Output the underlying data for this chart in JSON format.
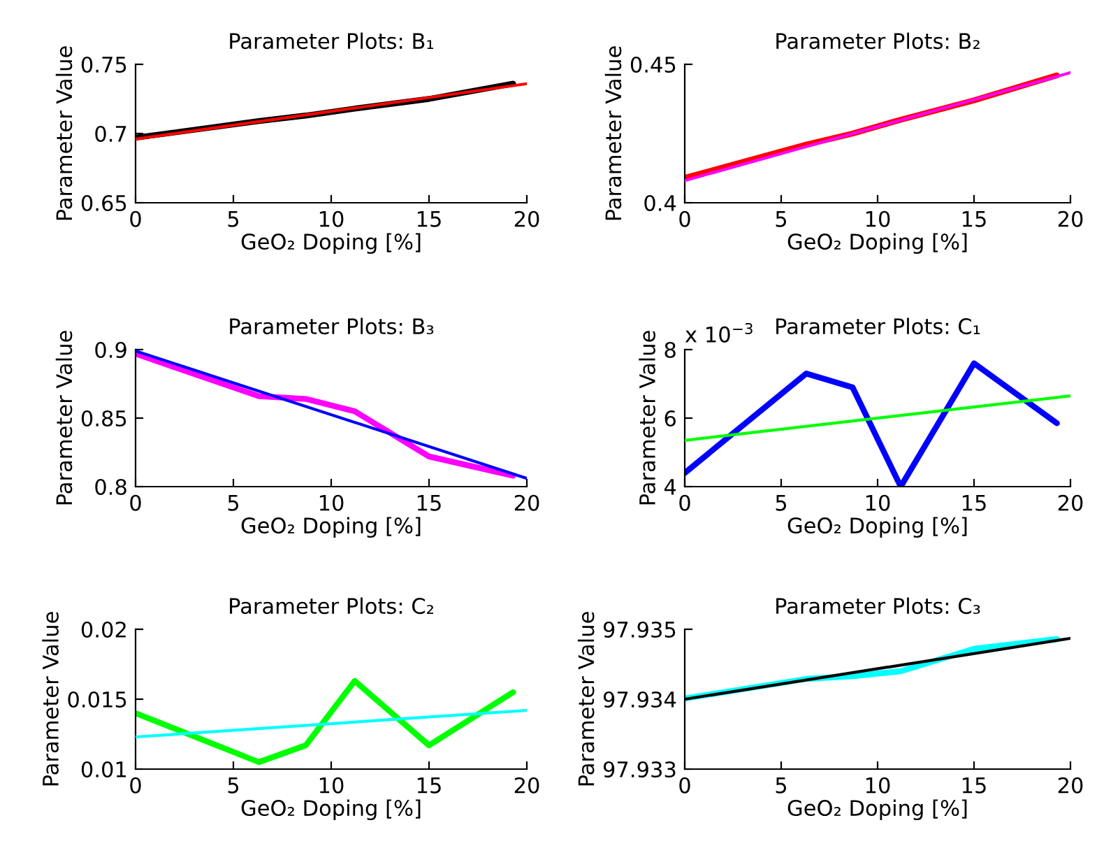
{
  "chart_data": [
    {
      "type": "line",
      "title": "Parameter Plots: B₁",
      "xlabel": "GeO₂ Doping [%]",
      "ylabel": "Parameter Value",
      "xlim": [
        0,
        20
      ],
      "xticks": [
        0,
        5,
        10,
        15,
        20
      ],
      "ylim": [
        0.65,
        0.75
      ],
      "yticks": [
        0.65,
        0.7,
        0.75
      ],
      "grid": false,
      "series": [
        {
          "color": "#000000",
          "x": [
            0,
            6.3,
            8.7,
            11.2,
            15,
            19.3
          ],
          "values": [
            0.697,
            0.709,
            0.713,
            0.718,
            0.725,
            0.736
          ]
        },
        {
          "color": "#ff0000",
          "x": [
            0,
            20
          ],
          "values": [
            0.696,
            0.736
          ]
        }
      ]
    },
    {
      "type": "line",
      "title": "Parameter Plots: B₂",
      "xlabel": "GeO₂ Doping [%]",
      "ylabel": "Parameter Value",
      "xlim": [
        0,
        20
      ],
      "xticks": [
        0,
        5,
        10,
        15,
        20
      ],
      "ylim": [
        0.4,
        0.45
      ],
      "yticks": [
        0.4,
        0.45
      ],
      "grid": false,
      "series": [
        {
          "color": "#ff0000",
          "x": [
            0,
            6.3,
            8.7,
            11.2,
            15,
            19.3
          ],
          "values": [
            0.409,
            0.421,
            0.425,
            0.43,
            0.437,
            0.446
          ]
        },
        {
          "color": "#ff00ff",
          "x": [
            0,
            20
          ],
          "values": [
            0.408,
            0.447
          ]
        }
      ]
    },
    {
      "type": "line",
      "title": "Parameter Plots: B₃",
      "xlabel": "GeO₂ Doping [%]",
      "ylabel": "Parameter Value",
      "xlim": [
        0,
        20
      ],
      "xticks": [
        0,
        5,
        10,
        15,
        20
      ],
      "ylim": [
        0.8,
        0.9
      ],
      "yticks": [
        0.8,
        0.85,
        0.9
      ],
      "grid": false,
      "series": [
        {
          "color": "#ff00ff",
          "x": [
            0,
            6.3,
            8.7,
            11.2,
            15,
            19.3
          ],
          "values": [
            0.897,
            0.866,
            0.864,
            0.855,
            0.822,
            0.808
          ]
        },
        {
          "color": "#0000ff",
          "x": [
            0,
            20
          ],
          "values": [
            0.899,
            0.806
          ]
        }
      ]
    },
    {
      "type": "line",
      "title": "Parameter Plots: C₁",
      "xlabel": "GeO₂ Doping [%]",
      "ylabel": "Parameter Value",
      "annotations": [
        "x 10$^{−3}$"
      ],
      "xlim": [
        0,
        20
      ],
      "xticks": [
        0,
        5,
        10,
        15,
        20
      ],
      "ylim": [
        4,
        8
      ],
      "yticks": [
        4,
        6,
        8
      ],
      "grid": false,
      "series": [
        {
          "color": "#0000ff",
          "x": [
            0,
            6.3,
            8.7,
            11.2,
            15,
            19.3
          ],
          "values": [
            4.4,
            7.3,
            6.9,
            4.0,
            7.6,
            5.85
          ]
        },
        {
          "color": "#00ff00",
          "x": [
            0,
            20
          ],
          "values": [
            5.35,
            6.65
          ]
        }
      ]
    },
    {
      "type": "line",
      "title": "Parameter Plots: C₂",
      "xlabel": "GeO₂ Doping [%]",
      "ylabel": "Parameter Value",
      "xlim": [
        0,
        20
      ],
      "xticks": [
        0,
        5,
        10,
        15,
        20
      ],
      "ylim": [
        0.01,
        0.02
      ],
      "yticks": [
        0.01,
        0.015,
        0.02
      ],
      "grid": false,
      "series": [
        {
          "color": "#00ff00",
          "x": [
            0,
            6.3,
            8.7,
            11.2,
            15,
            19.3
          ],
          "values": [
            0.014,
            0.0105,
            0.0117,
            0.0163,
            0.0117,
            0.0155
          ]
        },
        {
          "color": "#00ffff",
          "x": [
            0,
            20
          ],
          "values": [
            0.0123,
            0.0142
          ]
        }
      ]
    },
    {
      "type": "line",
      "title": "Parameter Plots: C₃",
      "xlabel": "GeO₂ Doping [%]",
      "ylabel": "Parameter Value",
      "xlim": [
        0,
        20
      ],
      "xticks": [
        0,
        5,
        10,
        15,
        20
      ],
      "ylim": [
        97.933,
        97.935
      ],
      "yticks": [
        97.933,
        97.934,
        97.935
      ],
      "grid": false,
      "series": [
        {
          "color": "#00ffff",
          "x": [
            0,
            6.3,
            8.7,
            11.2,
            15,
            19.3
          ],
          "values": [
            97.93401,
            97.93429,
            97.93433,
            97.9344,
            97.93472,
            97.93486
          ]
        },
        {
          "color": "#000000",
          "x": [
            0,
            20
          ],
          "values": [
            97.934,
            97.93487
          ]
        }
      ]
    }
  ]
}
